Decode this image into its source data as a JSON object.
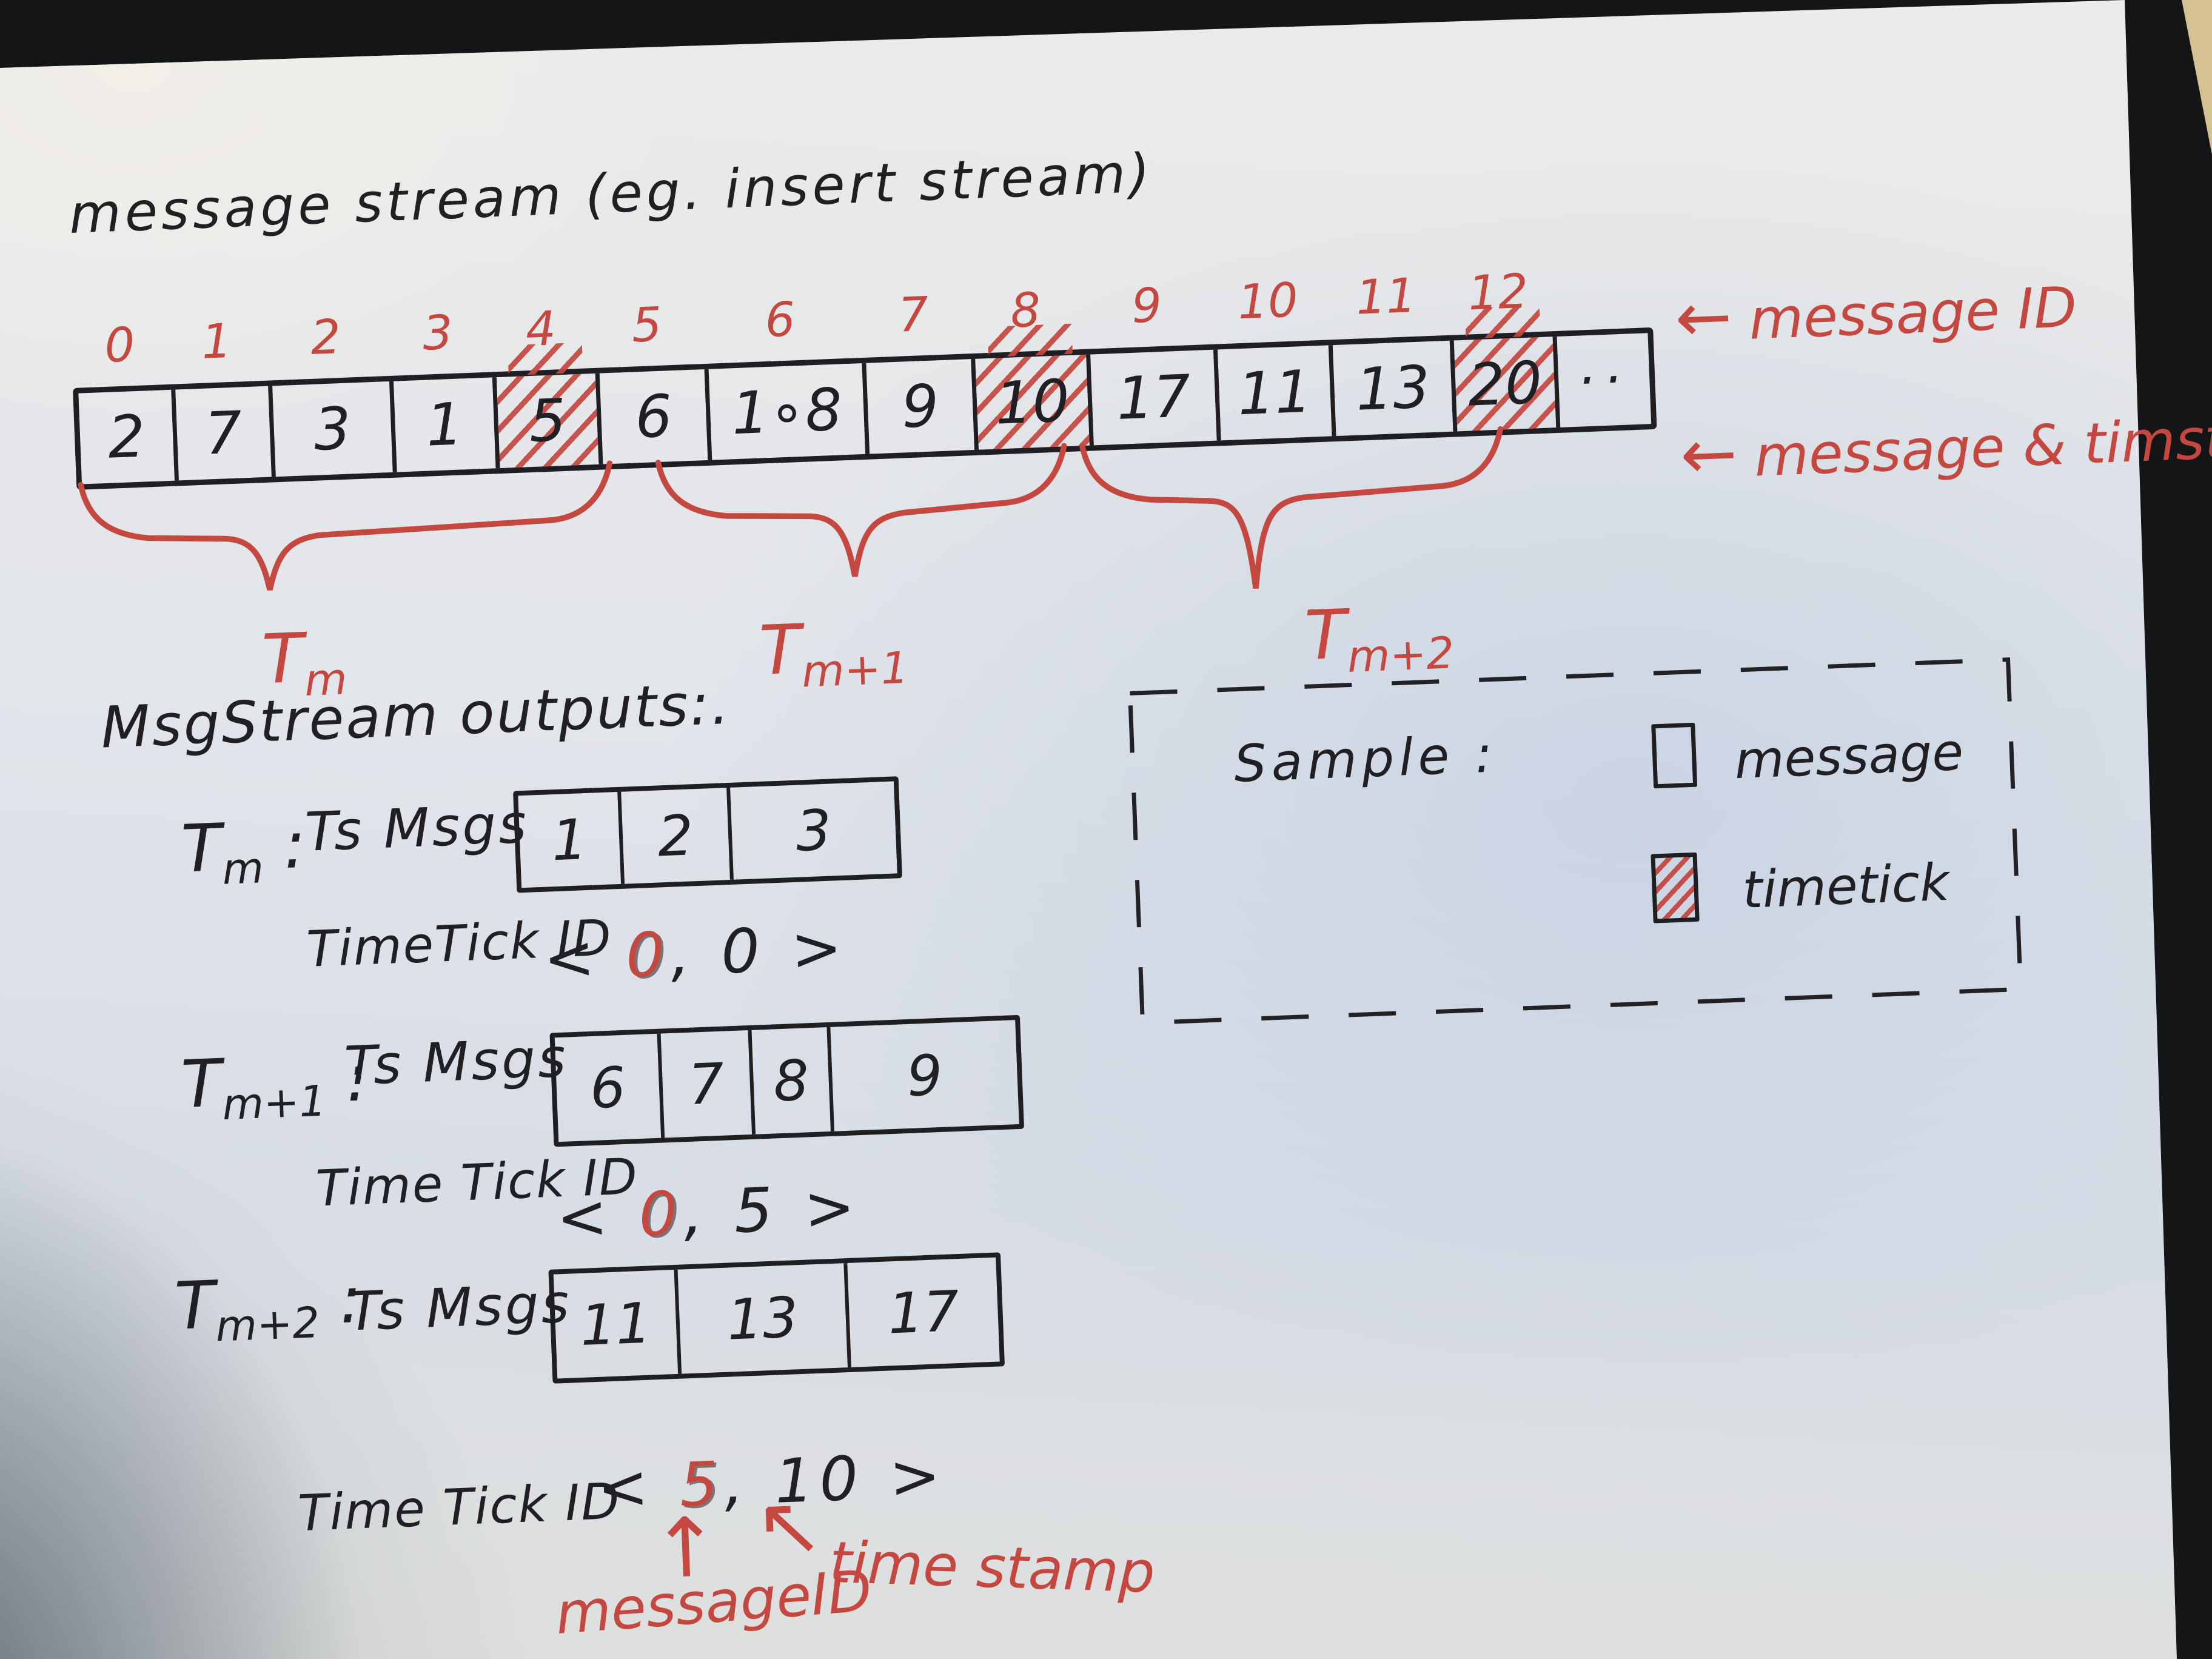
{
  "title": "message stream  (eg.  insert stream)",
  "colors": {
    "marker_black": "#202024",
    "marker_red": "#c4483f",
    "paper": "#e2e5ea",
    "background": "#131517"
  },
  "stream": {
    "indices": [
      "0",
      "1",
      "2",
      "3",
      "4",
      "5",
      "6",
      "7",
      "8",
      "9",
      "10",
      "11",
      "12"
    ],
    "cells": [
      {
        "value": "2",
        "type": "message"
      },
      {
        "value": "7",
        "type": "message"
      },
      {
        "value": "3",
        "type": "message"
      },
      {
        "value": "1",
        "type": "message"
      },
      {
        "value": "5",
        "type": "timetick"
      },
      {
        "value": "6",
        "type": "message"
      },
      {
        "value": "1∘8",
        "type": "message"
      },
      {
        "value": "9",
        "type": "message"
      },
      {
        "value": "10",
        "type": "timetick"
      },
      {
        "value": "17",
        "type": "message"
      },
      {
        "value": "11",
        "type": "message"
      },
      {
        "value": "13",
        "type": "message"
      },
      {
        "value": "20",
        "type": "timetick"
      },
      {
        "value": "··",
        "type": "ellipsis"
      }
    ],
    "annotations": [
      {
        "arrow": "←",
        "text": "message ID"
      },
      {
        "arrow": "←",
        "text": "message & timstamp"
      }
    ],
    "groups": [
      {
        "base": "T",
        "sub": "m"
      },
      {
        "base": "T",
        "sub": "m+1"
      },
      {
        "base": "T",
        "sub": "m+2"
      }
    ]
  },
  "outputs": {
    "heading": "MsgStream outputs:.",
    "rows": [
      {
        "window_base": "T",
        "window_sub": "m",
        "colon": ":",
        "msgs_label": "Ts Msgs",
        "msgs": [
          "1",
          "2",
          "3"
        ],
        "tick_label": "TimeTick ID",
        "tick": {
          "open": "<",
          "first": "0",
          "comma": ",",
          "second": "0",
          "close": ">"
        }
      },
      {
        "window_base": "T",
        "window_sub": "m+1",
        "colon": ":",
        "msgs_label": "Ts Msgs",
        "msgs": [
          "6",
          "7",
          "8",
          "9"
        ],
        "tick_label": "Time Tick ID",
        "tick": {
          "open": "<",
          "first": "0",
          "comma": ",",
          "second": "5",
          "close": ">"
        }
      },
      {
        "window_base": "T",
        "window_sub": "m+2",
        "colon": ":",
        "msgs_label": "Ts Msgs",
        "msgs": [
          "11",
          "13",
          "17"
        ],
        "tick_label": "Time Tick ID",
        "tick": {
          "open": "<",
          "first": "5",
          "comma": ",",
          "second": "10",
          "close": ">"
        }
      }
    ],
    "footnote": {
      "up_arrow": "↑",
      "upleft_arrow": "↖",
      "message_id_label": "messageID",
      "timestamp_label": "time stamp"
    }
  },
  "legend": {
    "title": "Sample :",
    "items": [
      {
        "swatch": "message",
        "label": "message"
      },
      {
        "swatch": "timetick",
        "label": "timetick"
      }
    ]
  }
}
